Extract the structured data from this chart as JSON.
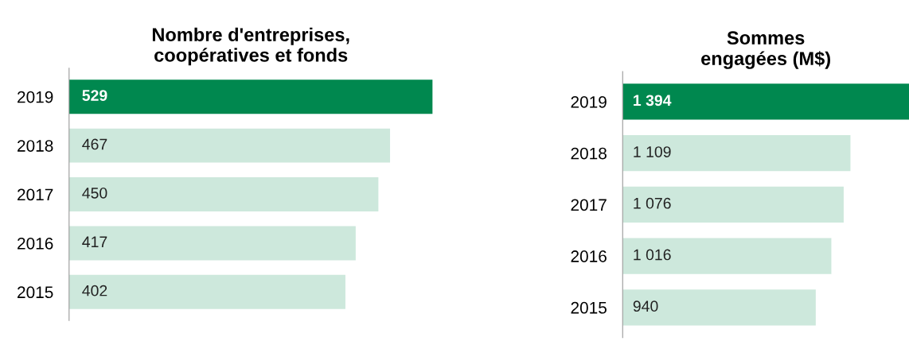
{
  "chart_data": [
    {
      "type": "bar",
      "orientation": "horizontal",
      "title": "Nombre d'entreprises,\ncoopératives et fonds",
      "categories": [
        "2019",
        "2018",
        "2017",
        "2016",
        "2015"
      ],
      "values": [
        529,
        467,
        450,
        417,
        402
      ],
      "colors": [
        "#00884f",
        "#cde8dc",
        "#cde8dc",
        "#cde8dc",
        "#cde8dc"
      ],
      "data_labels": true,
      "tick_labels": "y",
      "grid": false,
      "legend": false
    },
    {
      "type": "bar",
      "orientation": "horizontal",
      "title": "Sommes\nengagées (M$)",
      "categories": [
        "2019",
        "2018",
        "2017",
        "2016",
        "2015"
      ],
      "values": [
        1394,
        1109,
        1076,
        1016,
        940
      ],
      "value_labels": [
        "1 394",
        "1 109",
        "1 076",
        "1 016",
        "940"
      ],
      "colors": [
        "#00884f",
        "#cde8dc",
        "#cde8dc",
        "#cde8dc",
        "#cde8dc"
      ],
      "tick_labels": "y",
      "grid": false,
      "legend": false
    }
  ]
}
